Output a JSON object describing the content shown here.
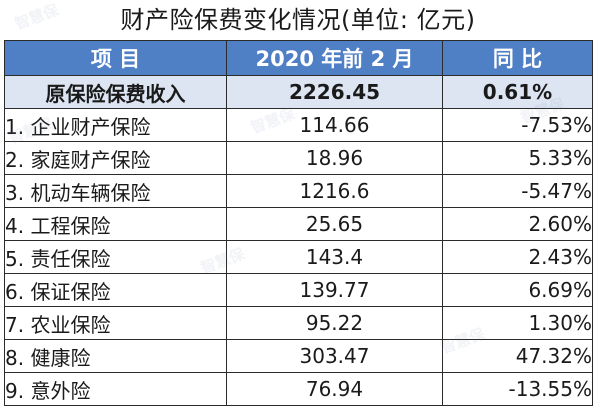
{
  "title": "财产险保费变化情况(单位: 亿元)",
  "header": {
    "col_item": "项  目",
    "col_value": "2020 年前 2 月",
    "col_yoy": "同  比"
  },
  "total": {
    "item": "原保险保费收入",
    "value": "2226.45",
    "yoy": "0.61%"
  },
  "rows": [
    {
      "item": "1. 企业财产保险",
      "value": "114.66",
      "yoy": "-7.53%"
    },
    {
      "item": "2. 家庭财产保险",
      "value": "18.96",
      "yoy": "5.33%"
    },
    {
      "item": "3. 机动车辆保险",
      "value": "1216.6",
      "yoy": "-5.47%"
    },
    {
      "item": "4. 工程保险",
      "value": "25.65",
      "yoy": "2.60%"
    },
    {
      "item": "5. 责任保险",
      "value": "143.4",
      "yoy": "2.43%"
    },
    {
      "item": "6. 保证保险",
      "value": "139.77",
      "yoy": "6.69%"
    },
    {
      "item": "7. 农业保险",
      "value": "95.22",
      "yoy": "1.30%"
    },
    {
      "item": "8. 健康险",
      "value": "303.47",
      "yoy": "47.32%"
    },
    {
      "item": "9. 意外险",
      "value": "76.94",
      "yoy": "-13.55%"
    }
  ],
  "colors": {
    "header_bg": "#4f7fc5",
    "total_bg": "#dde5f2"
  },
  "watermark_text": "智慧保"
}
